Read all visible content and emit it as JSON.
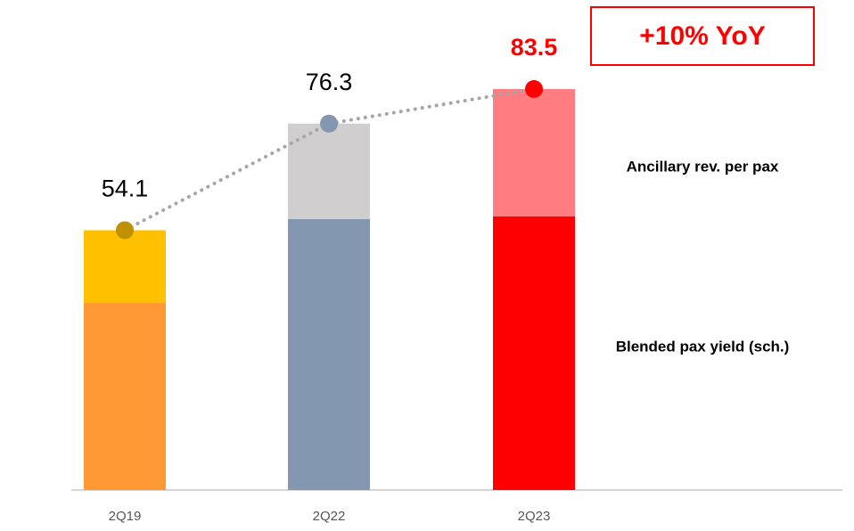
{
  "chart_data": {
    "type": "stacked_bar_line",
    "categories": [
      "2Q19",
      "2Q22",
      "2Q23"
    ],
    "series": [
      {
        "name": "Blended pax yield (sch.)",
        "colors": [
          "#ff9933",
          "#8497b0",
          "#ff0000"
        ],
        "values": [
          39.0,
          56.4,
          57.0
        ]
      },
      {
        "name": "Ancillary rev. per pax",
        "colors": [
          "#ffc000",
          "#d0cece",
          "#ff7c80"
        ],
        "values": [
          15.1,
          19.9,
          26.5
        ]
      }
    ],
    "totals": [
      54.1,
      76.3,
      83.5
    ],
    "total_colors": [
      "#000000",
      "#000000",
      "#ff0000"
    ],
    "marker_colors": [
      "#bf9000",
      "#8497b0",
      "#ff0000"
    ],
    "annotation": "+10% YoY",
    "ylim": [
      0,
      100
    ]
  }
}
